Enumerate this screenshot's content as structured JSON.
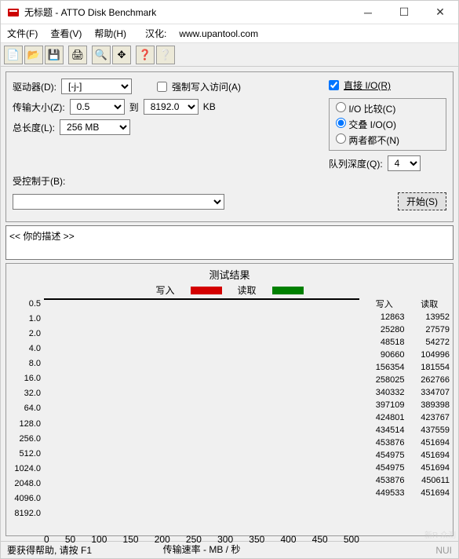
{
  "window": {
    "title": "无标题 - ATTO Disk Benchmark"
  },
  "menu": {
    "file": "文件(F)",
    "view": "查看(V)",
    "help": "帮助(H)",
    "hanhua_label": "汉化:",
    "hanhua_url": "www.upantool.com"
  },
  "toolbar_icons": [
    "📄",
    "📂",
    "💾",
    "🖨",
    "🔍",
    "✥",
    "❓",
    "❔"
  ],
  "form": {
    "drive_label": "驱动器(D):",
    "drive_value": "[-j-]",
    "force_label": "强制写入访问(A)",
    "direct_io_label": "直接 I/O(R)",
    "direct_io_checked": true,
    "xfer_label": "传输大小(Z):",
    "xfer_from": "0.5",
    "xfer_to_label": "到",
    "xfer_to": "8192.0",
    "xfer_unit": "KB",
    "io_compare": "I/O 比较(C)",
    "io_overlap": "交叠 I/O(O)",
    "io_neither": "两者都不(N)",
    "io_selected": "overlap",
    "len_label": "总长度(L):",
    "len_value": "256 MB",
    "queue_label": "队列深度(Q):",
    "queue_value": "4",
    "controlled_label": "受控制于(B):",
    "start_btn": "开始(S)",
    "desc_text": "<<  你的描述   >>"
  },
  "results": {
    "title": "测试结果",
    "write_label": "写入",
    "read_label": "读取",
    "write_color": "#d40000",
    "read_color": "#008000",
    "grid_color": "#0000aa",
    "xlabel": "传输速率 - MB / 秒",
    "xmax": 500,
    "xticks": [
      0,
      50,
      100,
      150,
      200,
      250,
      300,
      350,
      400,
      450,
      500
    ],
    "sizes": [
      "0.5",
      "1.0",
      "2.0",
      "4.0",
      "8.0",
      "16.0",
      "32.0",
      "64.0",
      "128.0",
      "256.0",
      "512.0",
      "1024.0",
      "2048.0",
      "4096.0",
      "8192.0"
    ],
    "write_kb": [
      12863,
      25280,
      48518,
      90660,
      156354,
      258025,
      340332,
      397109,
      424801,
      434514,
      453876,
      454975,
      454975,
      453876,
      449533
    ],
    "read_kb": [
      13952,
      27579,
      54272,
      104996,
      181554,
      262766,
      334707,
      389398,
      423767,
      437559,
      451694,
      451694,
      451694,
      450611,
      451694
    ],
    "max_kb": 512000
  },
  "status": {
    "text": "要获得帮助, 请按 F1",
    "right": "NUI"
  },
  "watermark": "新R 众测"
}
